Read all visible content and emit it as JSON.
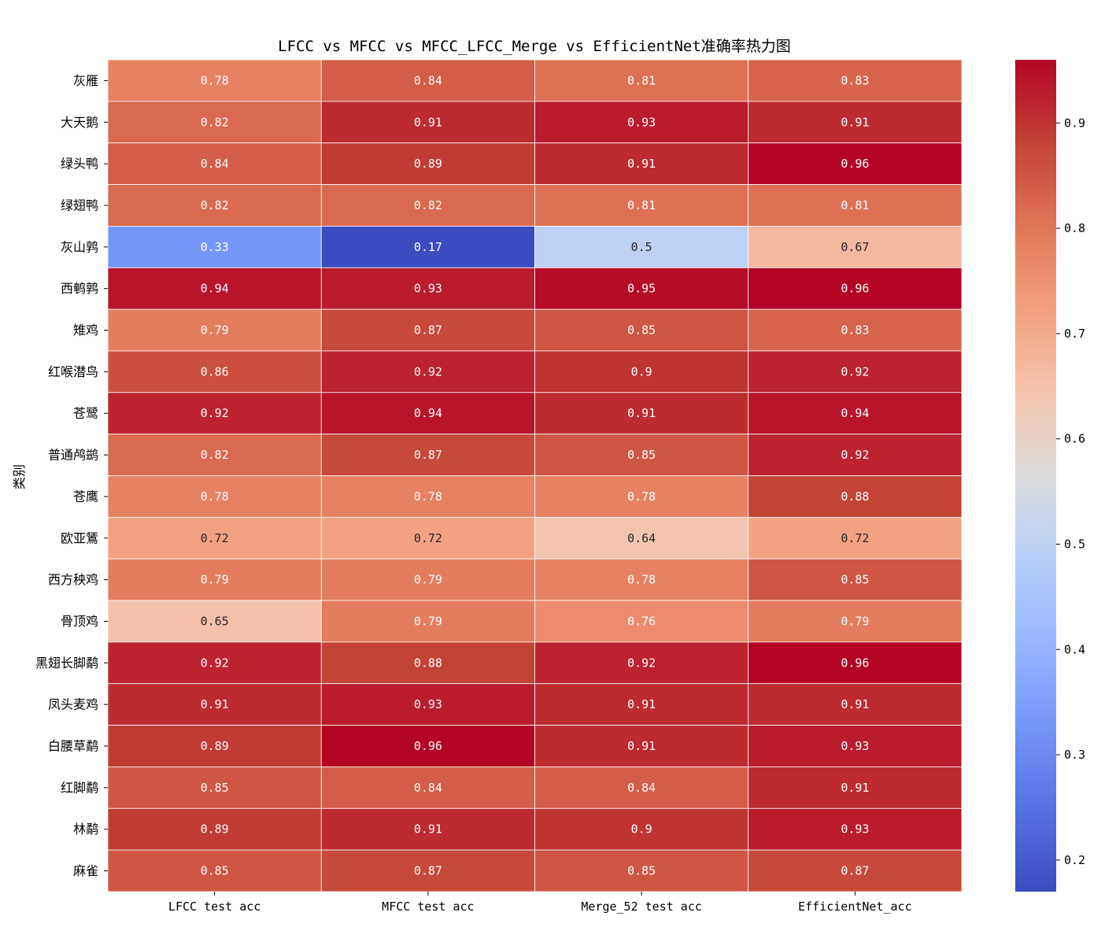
{
  "chart_data": {
    "type": "heatmap",
    "title": "LFCC vs MFCC vs MFCC_LFCC_Merge vs EfficientNet准确率热力图",
    "xlabel": "",
    "ylabel": "类别",
    "columns": [
      "LFCC test acc",
      "MFCC test acc",
      "Merge_52 test acc",
      "EfficientNet_acc"
    ],
    "rows": [
      "灰雁",
      "大天鹅",
      "绿头鸭",
      "绿翅鸭",
      "灰山鹑",
      "西鹌鹑",
      "雉鸡",
      "红喉潜鸟",
      "苍鹭",
      "普通鸬鹚",
      "苍鹰",
      "欧亚鵟",
      "西方秧鸡",
      "骨顶鸡",
      "黑翅长脚鹬",
      "凤头麦鸡",
      "白腰草鹬",
      "红脚鹬",
      "林鹬",
      "麻雀"
    ],
    "values": [
      [
        0.78,
        0.84,
        0.81,
        0.83
      ],
      [
        0.82,
        0.91,
        0.93,
        0.91
      ],
      [
        0.84,
        0.89,
        0.91,
        0.96
      ],
      [
        0.82,
        0.82,
        0.81,
        0.81
      ],
      [
        0.33,
        0.17,
        0.5,
        0.67
      ],
      [
        0.94,
        0.93,
        0.95,
        0.96
      ],
      [
        0.79,
        0.87,
        0.85,
        0.83
      ],
      [
        0.86,
        0.92,
        0.9,
        0.92
      ],
      [
        0.92,
        0.94,
        0.91,
        0.94
      ],
      [
        0.82,
        0.87,
        0.85,
        0.92
      ],
      [
        0.78,
        0.78,
        0.78,
        0.88
      ],
      [
        0.72,
        0.72,
        0.64,
        0.72
      ],
      [
        0.79,
        0.79,
        0.78,
        0.85
      ],
      [
        0.65,
        0.79,
        0.76,
        0.79
      ],
      [
        0.92,
        0.88,
        0.92,
        0.96
      ],
      [
        0.91,
        0.93,
        0.91,
        0.91
      ],
      [
        0.89,
        0.96,
        0.91,
        0.93
      ],
      [
        0.85,
        0.84,
        0.84,
        0.91
      ],
      [
        0.89,
        0.91,
        0.9,
        0.93
      ],
      [
        0.85,
        0.87,
        0.85,
        0.87
      ]
    ],
    "colormap": "coolwarm",
    "vmin": 0.17,
    "vmax": 0.96,
    "colorbar_ticks": [
      "0.2",
      "0.3",
      "0.4",
      "0.5",
      "0.6",
      "0.7",
      "0.8",
      "0.9"
    ],
    "annotate": true,
    "grid": false
  }
}
